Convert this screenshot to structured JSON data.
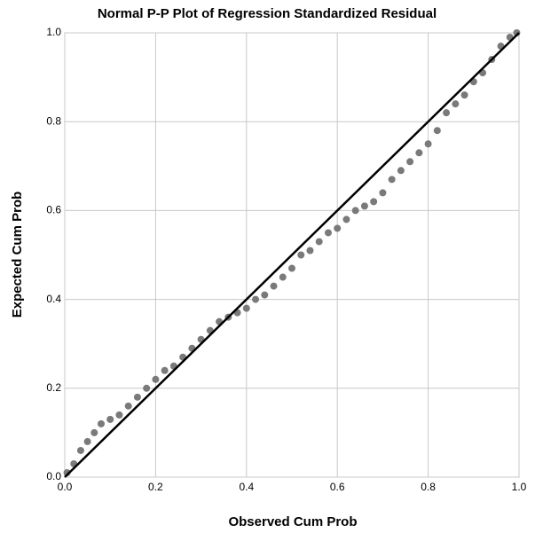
{
  "chart_data": {
    "type": "scatter",
    "title": "Normal P-P Plot of Regression Standardized Residual",
    "x_label": "Observed Cum Prob",
    "y_label": "Expected Cum Prob",
    "xlim": [
      0,
      1
    ],
    "ylim": [
      0,
      1
    ],
    "xticks": [
      {
        "value": 0,
        "label": "0.0"
      },
      0.2,
      0.4,
      0.6,
      0.8,
      {
        "value": 1,
        "label": "1.0"
      }
    ],
    "yticks": [
      {
        "value": 0,
        "label": "0.0"
      },
      0.2,
      0.4,
      0.6,
      0.8,
      {
        "value": 1,
        "label": "1.0"
      }
    ],
    "grid": true,
    "color": "#7a7a7a",
    "reference_line_color": "#000000",
    "x": [
      0.005,
      0.02,
      0.035,
      0.05,
      0.065,
      0.08,
      0.1,
      0.12,
      0.14,
      0.16,
      0.18,
      0.2,
      0.22,
      0.24,
      0.26,
      0.28,
      0.3,
      0.32,
      0.34,
      0.36,
      0.38,
      0.4,
      0.42,
      0.44,
      0.46,
      0.48,
      0.5,
      0.52,
      0.54,
      0.56,
      0.58,
      0.6,
      0.62,
      0.64,
      0.66,
      0.68,
      0.7,
      0.72,
      0.74,
      0.76,
      0.78,
      0.8,
      0.82,
      0.84,
      0.86,
      0.88,
      0.9,
      0.92,
      0.94,
      0.96,
      0.98,
      0.995
    ],
    "y": [
      0.01,
      0.03,
      0.06,
      0.08,
      0.1,
      0.12,
      0.13,
      0.14,
      0.16,
      0.18,
      0.2,
      0.22,
      0.24,
      0.25,
      0.27,
      0.29,
      0.31,
      0.33,
      0.35,
      0.36,
      0.37,
      0.38,
      0.4,
      0.41,
      0.43,
      0.45,
      0.47,
      0.5,
      0.51,
      0.53,
      0.55,
      0.56,
      0.58,
      0.6,
      0.61,
      0.62,
      0.64,
      0.67,
      0.69,
      0.71,
      0.73,
      0.75,
      0.78,
      0.82,
      0.84,
      0.86,
      0.89,
      0.91,
      0.94,
      0.97,
      0.99,
      1.0
    ]
  }
}
